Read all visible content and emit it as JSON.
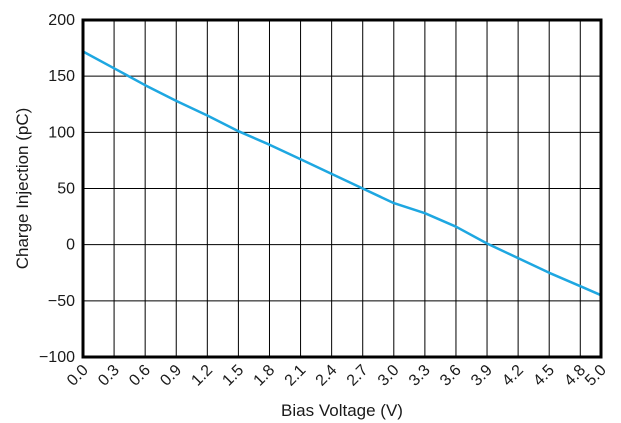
{
  "chart_data": {
    "type": "line",
    "xlabel": "Bias Voltage (V)",
    "ylabel": "Charge Injection (pC)",
    "xlim": [
      0.0,
      5.0
    ],
    "ylim": [
      -100,
      200
    ],
    "x_ticks": [
      0.0,
      0.3,
      0.6,
      0.9,
      1.2,
      1.5,
      1.8,
      2.1,
      2.4,
      2.7,
      3.0,
      3.3,
      3.6,
      3.9,
      4.2,
      4.5,
      4.8,
      5.0
    ],
    "x_tick_labels": [
      "0.0",
      "0.3",
      "0.6",
      "0.9",
      "1.2",
      "1.5",
      "1.8",
      "2.1",
      "2.4",
      "2.7",
      "3.0",
      "3.3",
      "3.6",
      "3.9",
      "4.2",
      "4.5",
      "4.8",
      "5.0"
    ],
    "y_ticks": [
      -100,
      -50,
      0,
      50,
      100,
      150,
      200
    ],
    "y_tick_labels": [
      "−100",
      "−50",
      "0",
      "50",
      "100",
      "150",
      "200"
    ],
    "grid": true,
    "series": [
      {
        "color": "#1ea7e1",
        "x": [
          0.0,
          0.3,
          0.6,
          0.9,
          1.2,
          1.5,
          1.8,
          2.1,
          2.4,
          2.7,
          3.0,
          3.3,
          3.6,
          3.9,
          4.2,
          4.5,
          4.8,
          5.0
        ],
        "y": [
          172,
          157,
          142,
          128,
          115,
          101,
          89,
          76,
          63,
          50,
          37,
          28,
          16,
          1,
          -12,
          -25,
          -37,
          -45
        ]
      }
    ]
  }
}
